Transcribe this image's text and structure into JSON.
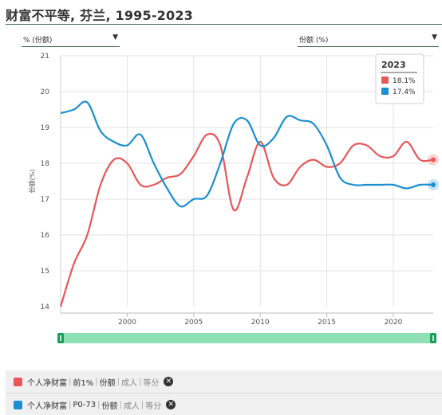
{
  "title": "财富不平等, 芬兰, 1995-2023",
  "controls": {
    "left_dropdown": "% (份额)",
    "right_dropdown": "份额 (%)"
  },
  "tooltip": {
    "year": "2023",
    "items": [
      {
        "value": "18.1%",
        "color": "#e8575a"
      },
      {
        "value": "17.4%",
        "color": "#1b8fd1"
      }
    ]
  },
  "legend": [
    {
      "color": "#e8575a",
      "parts": [
        "个人净财富",
        "前1%",
        "份额"
      ],
      "muted": [
        "成人",
        "等分"
      ]
    },
    {
      "color": "#1b8fd1",
      "parts": [
        "个人净财富",
        "P0-73",
        "份额"
      ],
      "muted": [
        "成人",
        "等分"
      ]
    }
  ],
  "chart_data": {
    "type": "line",
    "title": "财富不平等, 芬兰, 1995-2023",
    "xlabel": "",
    "ylabel": "份额(%)",
    "xlim": [
      1995,
      2023
    ],
    "ylim": [
      14,
      21
    ],
    "xticks": [
      2000,
      2005,
      2010,
      2015,
      2020
    ],
    "yticks": [
      14,
      15,
      16,
      17,
      18,
      19,
      20,
      21
    ],
    "grid": true,
    "series": [
      {
        "name": "个人净财富 | 前1% | 份额",
        "color": "#e8575a",
        "x": [
          1995,
          1996,
          1997,
          1998,
          1999,
          2000,
          2001,
          2002,
          2003,
          2004,
          2005,
          2006,
          2007,
          2008,
          2009,
          2010,
          2011,
          2012,
          2013,
          2014,
          2015,
          2016,
          2017,
          2018,
          2019,
          2020,
          2021,
          2022,
          2023
        ],
        "y": [
          14.0,
          15.2,
          16.0,
          17.4,
          18.1,
          18.0,
          17.4,
          17.4,
          17.6,
          17.7,
          18.2,
          18.8,
          18.5,
          16.7,
          17.6,
          18.6,
          17.6,
          17.4,
          17.9,
          18.1,
          17.9,
          18.0,
          18.5,
          18.5,
          18.2,
          18.2,
          18.6,
          18.1,
          18.1
        ]
      },
      {
        "name": "个人净财富 | P0-73 | 份额",
        "color": "#1b8fd1",
        "x": [
          1995,
          1996,
          1997,
          1998,
          1999,
          2000,
          2001,
          2002,
          2003,
          2004,
          2005,
          2006,
          2007,
          2008,
          2009,
          2010,
          2011,
          2012,
          2013,
          2014,
          2015,
          2016,
          2017,
          2018,
          2019,
          2020,
          2021,
          2022,
          2023
        ],
        "y": [
          19.4,
          19.5,
          19.7,
          18.9,
          18.6,
          18.5,
          18.8,
          18.0,
          17.3,
          16.8,
          17.0,
          17.1,
          18.0,
          19.1,
          19.2,
          18.5,
          18.7,
          19.3,
          19.2,
          19.1,
          18.5,
          17.6,
          17.4,
          17.4,
          17.4,
          17.4,
          17.3,
          17.4,
          17.4
        ]
      }
    ]
  }
}
